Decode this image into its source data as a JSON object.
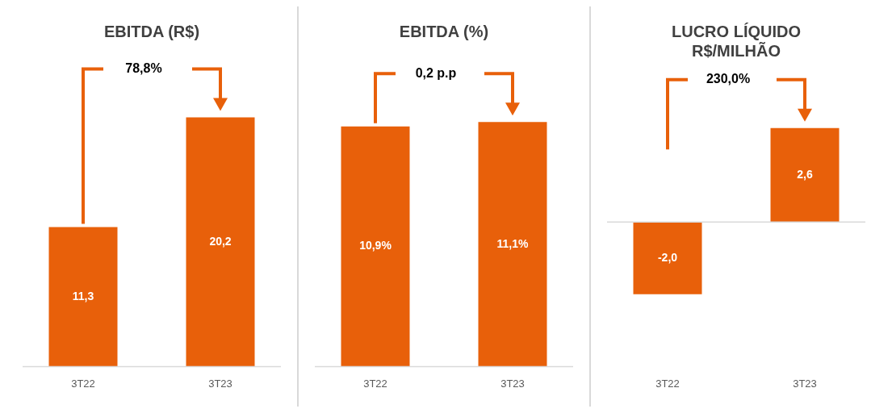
{
  "chart_data": [
    {
      "type": "bar",
      "title": "EBITDA (R$)",
      "categories": [
        "3T22",
        "3T23"
      ],
      "values": [
        11.3,
        20.2
      ],
      "value_labels": [
        "11,3",
        "20,2"
      ],
      "color": "#e8600a",
      "tick_labels": "x",
      "grid": false,
      "legend": false,
      "annotations": [
        "78,8%"
      ]
    },
    {
      "type": "bar",
      "title": "EBITDA (%)",
      "categories": [
        "3T22",
        "3T23"
      ],
      "values": [
        10.9,
        11.1
      ],
      "value_labels": [
        "10,9%",
        "11,1%"
      ],
      "color": "#e8600a",
      "tick_labels": "x",
      "grid": false,
      "legend": false,
      "annotations": [
        "0,2 p.p"
      ]
    },
    {
      "type": "bar",
      "title": "LUCRO LÍQUIDO\nR$/MILHÃO",
      "categories": [
        "3T22",
        "3T23"
      ],
      "values": [
        -2.0,
        2.6
      ],
      "value_labels": [
        "-2,0",
        "2,6"
      ],
      "color": "#e8600a",
      "tick_labels": "x",
      "grid": false,
      "legend": false,
      "annotations": [
        "230,0%"
      ]
    }
  ]
}
